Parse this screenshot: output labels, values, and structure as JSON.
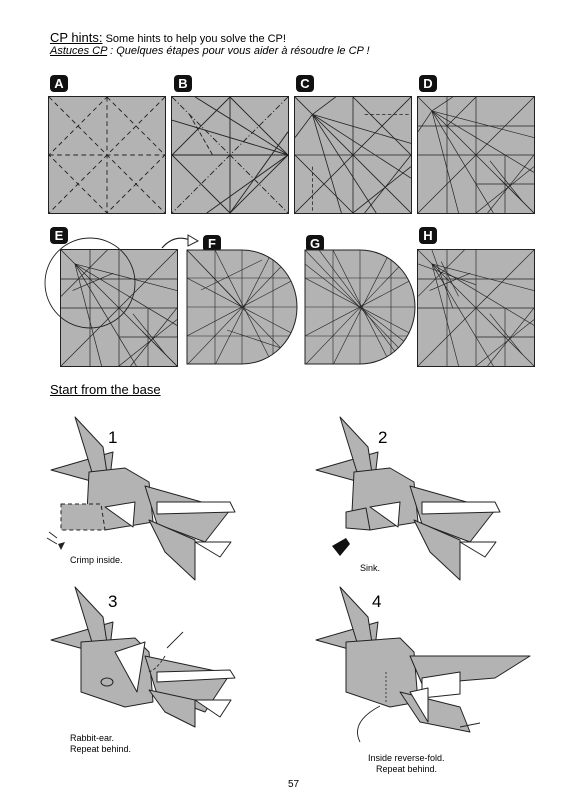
{
  "header": {
    "title_en_label": "CP hints:",
    "title_en_text": " Some hints to help you solve the CP!",
    "title_fr_label": "Astuces CP",
    "title_fr_text": " : Quelques étapes pour vous aider à résoudre le CP !"
  },
  "cp_steps": [
    {
      "letter": "A"
    },
    {
      "letter": "B"
    },
    {
      "letter": "C"
    },
    {
      "letter": "D"
    },
    {
      "letter": "E"
    },
    {
      "letter": "F"
    },
    {
      "letter": "G"
    },
    {
      "letter": "H"
    }
  ],
  "section_title": "Start from the base",
  "steps": [
    {
      "number": "1",
      "caption_line1": "Crimp inside.",
      "caption_line2": ""
    },
    {
      "number": "2",
      "caption_line1": "Sink.",
      "caption_line2": ""
    },
    {
      "number": "3",
      "caption_line1": "Rabbit-ear.",
      "caption_line2": "Repeat behind."
    },
    {
      "number": "4",
      "caption_line1": "Inside reverse-fold.",
      "caption_line2": "Repeat behind."
    }
  ],
  "page_number": "57",
  "colors": {
    "paper": "#b3b3b3",
    "line": "#222222",
    "white_side": "#ffffff"
  }
}
